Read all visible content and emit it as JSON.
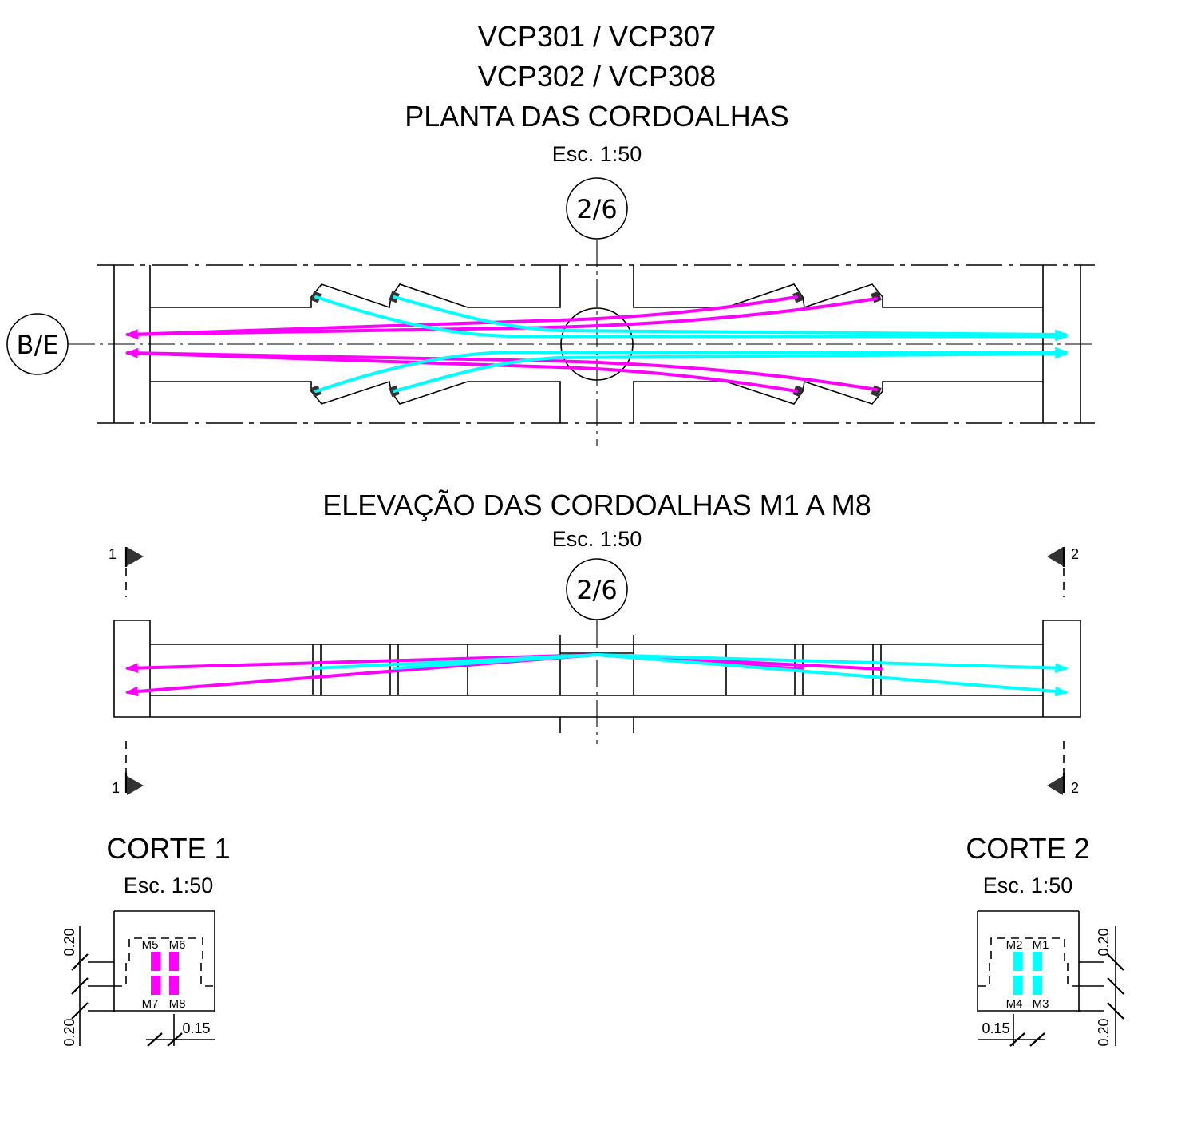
{
  "titles": {
    "plan_line1": "VCP301 / VCP307",
    "plan_line2": "VCP302 / VCP308",
    "plan_line3": "PLANTA DAS CORDOALHAS",
    "plan_scale": "Esc. 1:50",
    "elev_title": "ELEVAÇÃO DAS CORDOALHAS M1 A M8",
    "elev_scale": "Esc. 1:50"
  },
  "grid_bubbles": {
    "plan_top": "2/6",
    "plan_left": "B/E",
    "elev_top": "2/6"
  },
  "section_markers": {
    "left_top": "1",
    "left_bottom": "1",
    "right_top": "2",
    "right_bottom": "2"
  },
  "sections": {
    "corte1": {
      "title": "CORTE 1",
      "scale": "Esc. 1:50",
      "tendons": [
        "M5",
        "M6",
        "M7",
        "M8"
      ],
      "dim_top": "0.20",
      "dim_bottom": "0.20",
      "dim_width": "0.15"
    },
    "corte2": {
      "title": "CORTE 2",
      "scale": "Esc. 1:50",
      "tendons": [
        "M2",
        "M1",
        "M4",
        "M3"
      ],
      "dim_top": "0.20",
      "dim_bottom": "0.20",
      "dim_width": "0.15"
    }
  },
  "colors": {
    "tendons_a": "#ff00ff",
    "tendons_b": "#00ffff",
    "linework": "#000000"
  }
}
